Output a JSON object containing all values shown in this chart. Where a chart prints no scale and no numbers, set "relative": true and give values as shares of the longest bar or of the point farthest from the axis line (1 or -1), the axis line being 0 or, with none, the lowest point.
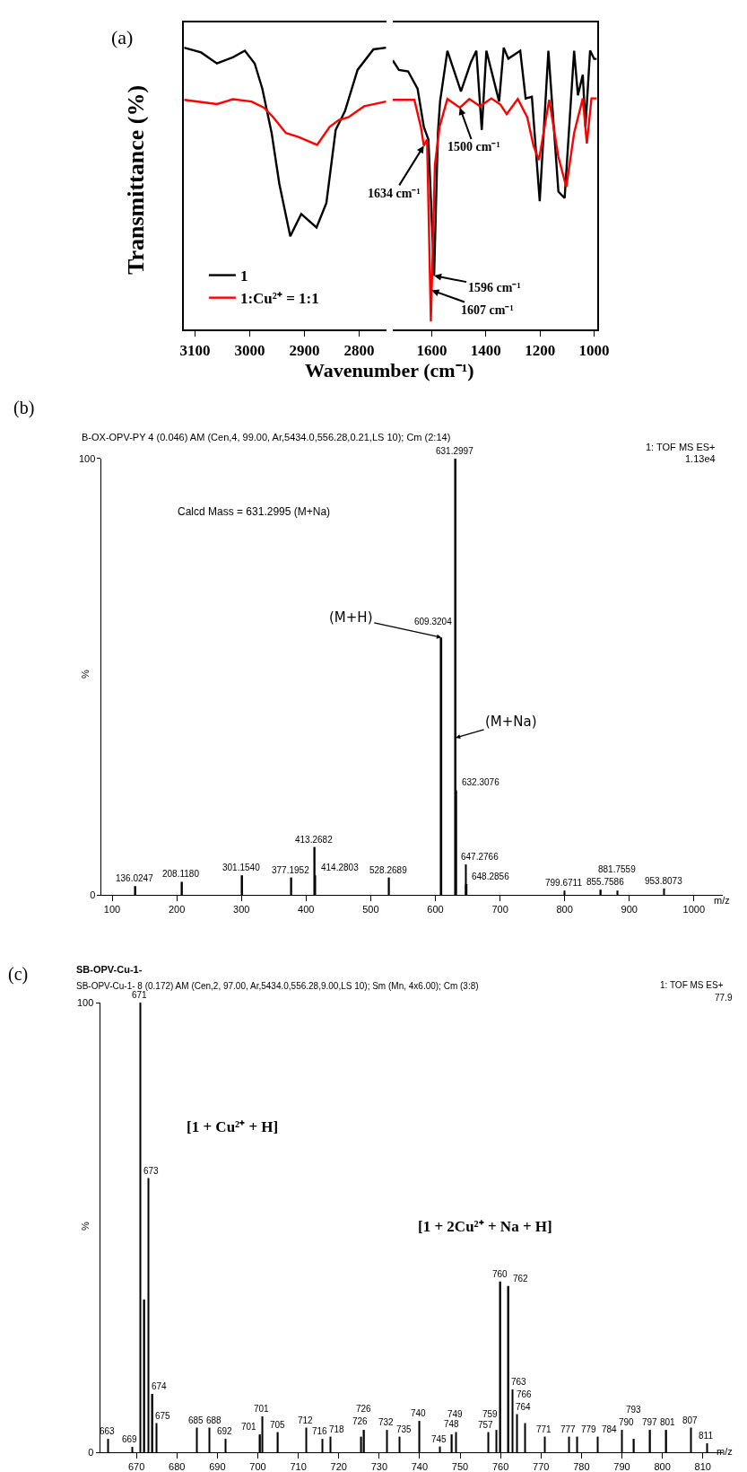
{
  "chart_data": [
    {
      "type": "line",
      "title": "(a)",
      "ylabel": "Transmittance (%)",
      "xlabel": "Wavenumber (cm⁻¹)",
      "relative": true,
      "xlim": [
        3120,
        2750
      ],
      "xticks": [
        3100,
        3000,
        2900,
        2800
      ],
      "legend": "bottom left",
      "series": [
        {
          "name": "1",
          "color": "#000000",
          "x": [
            3120,
            3089,
            3060,
            3031,
            3009,
            2991,
            2977,
            2960,
            2946,
            2926,
            2906,
            2878,
            2860,
            2843,
            2826,
            2803,
            2774,
            2751
          ],
          "values": [
            1.0,
            0.983,
            0.944,
            0.966,
            0.989,
            0.944,
            0.854,
            0.697,
            0.517,
            0.331,
            0.41,
            0.362,
            0.449,
            0.708,
            0.775,
            0.921,
            0.994,
            1.0
          ]
        },
        {
          "name": "1:Cu²⁺ = 1:1",
          "color": "#ff0000",
          "x": [
            3120,
            3060,
            3031,
            2997,
            2974,
            2957,
            2934,
            2911,
            2877,
            2854,
            2837,
            2820,
            2791,
            2751
          ],
          "values": [
            0.815,
            0.8,
            0.817,
            0.809,
            0.787,
            0.753,
            0.697,
            0.683,
            0.655,
            0.719,
            0.744,
            0.753,
            0.792,
            0.809
          ]
        }
      ]
    },
    {
      "type": "line",
      "relative": true,
      "xlim": [
        1744,
        990
      ],
      "xticks": [
        1600,
        1400,
        1200,
        1000
      ],
      "annotations": [
        {
          "text": "1634 cm⁻¹",
          "x": 1629,
          "y": 0.652
        },
        {
          "text": "1500 cm⁻¹",
          "x": 1496,
          "y": 0.787
        },
        {
          "text": "1596 cm⁻¹",
          "x": 1591,
          "y": 0.191
        },
        {
          "text": "1607 cm⁻¹",
          "x": 1600,
          "y": 0.139
        }
      ],
      "series": [
        {
          "color": "#000000",
          "x": [
            1744,
            1721,
            1687,
            1652,
            1629,
            1612,
            1591,
            1577,
            1569,
            1542,
            1492,
            1455,
            1435,
            1415,
            1398,
            1351,
            1334,
            1317,
            1273,
            1253,
            1230,
            1201,
            1169,
            1132,
            1109,
            1074,
            1060,
            1042,
            1032,
            1015,
            1000,
            990
          ],
          "values": [
            0.955,
            0.921,
            0.916,
            0.854,
            0.719,
            0.674,
            0.191,
            0.697,
            0.809,
            0.989,
            0.845,
            0.949,
            0.989,
            0.708,
            0.989,
            0.809,
            1.0,
            0.961,
            0.989,
            0.82,
            0.826,
            0.455,
            0.989,
            0.489,
            0.466,
            0.989,
            0.831,
            0.904,
            0.72,
            0.99,
            0.96,
            0.96
          ]
        },
        {
          "color": "#ff0000",
          "x": [
            1744,
            1664,
            1640,
            1629,
            1617,
            1603,
            1588,
            1571,
            1542,
            1496,
            1461,
            1421,
            1380,
            1346,
            1323,
            1282,
            1247,
            1224,
            1204,
            1166,
            1132,
            1103,
            1074,
            1042,
            1027,
            1010,
            1000,
            990
          ],
          "values": [
            0.815,
            0.815,
            0.719,
            0.652,
            0.674,
            0.028,
            0.584,
            0.719,
            0.818,
            0.787,
            0.818,
            0.792,
            0.82,
            0.798,
            0.764,
            0.818,
            0.753,
            0.652,
            0.601,
            0.815,
            0.612,
            0.506,
            0.697,
            0.82,
            0.66,
            0.82,
            0.82,
            0.82
          ]
        }
      ]
    },
    {
      "type": "bar",
      "title": "(b)",
      "subtitle": "B-OX-OPV-PY 4 (0.046) AM (Cen,4, 99.00, Ar,5434.0,556.28,0.21,LS 10); Cm (2:14)",
      "xlabel": "m/z",
      "ylabel": "%",
      "xlim": [
        84,
        1045
      ],
      "xticks": [
        100,
        200,
        300,
        400,
        500,
        600,
        700,
        800,
        900,
        1000
      ],
      "ylim": [
        0,
        100
      ],
      "yticks": [
        0,
        100
      ],
      "color": "#000000",
      "x": [
        136.0247,
        208.118,
        301.154,
        377.1952,
        413.2682,
        414.2803,
        528.2689,
        609.3204,
        631.2997,
        632.3076,
        647.2766,
        648.2856,
        799.6711,
        855.7586,
        881.7559,
        953.8073
      ],
      "values": [
        2,
        3,
        4.5,
        4,
        11,
        4.5,
        4,
        59,
        100,
        24,
        7,
        2.5,
        1,
        1.2,
        1,
        1.5
      ],
      "annotations": [
        {
          "text": "136.0247",
          "x": 136.0247,
          "y": 2
        },
        {
          "text": "208.1180",
          "x": 208.118,
          "y": 3
        },
        {
          "text": "301.1540",
          "x": 301.154,
          "y": 4.5
        },
        {
          "text": "377.1952",
          "x": 377.1952,
          "y": 4
        },
        {
          "text": "413.2682",
          "x": 413.2682,
          "y": 11
        },
        {
          "text": "414.2803",
          "x": 414.2803,
          "y": 4.5
        },
        {
          "text": "528.2689",
          "x": 528.2689,
          "y": 4
        },
        {
          "text": "609.3204",
          "x": 609.3204,
          "y": 59
        },
        {
          "text": "631.2997",
          "x": 631.2997,
          "y": 100
        },
        {
          "text": "632.3076",
          "x": 632.3076,
          "y": 24
        },
        {
          "text": "647.2766",
          "x": 647.2766,
          "y": 7
        },
        {
          "text": "648.2856",
          "x": 648.2856,
          "y": 2.5
        },
        {
          "text": "799.6711",
          "x": 799.6711,
          "y": 1
        },
        {
          "text": "855.7586",
          "x": 855.7586,
          "y": 1.2
        },
        {
          "text": "881.7559",
          "x": 881.7559,
          "y": 1
        },
        {
          "text": "953.8073",
          "x": 953.8073,
          "y": 1.5
        },
        {
          "text": "(M+H)",
          "x": 609.3204,
          "y": 59
        },
        {
          "text": "(M+Na)",
          "x": 631.2997,
          "y": 36
        },
        "Calcd Mass = 631.2995 (M+Na)",
        "1: TOF MS ES+",
        "1.13e4"
      ]
    },
    {
      "type": "bar",
      "title": "(c)",
      "subtitle": "SB-OPV-Cu-1-",
      "xlabel": "m/z",
      "ylabel": "%",
      "xlim": [
        661,
        815
      ],
      "xticks": [
        670,
        680,
        690,
        700,
        710,
        720,
        730,
        740,
        750,
        760,
        770,
        780,
        790,
        800,
        810
      ],
      "ylim": [
        0,
        100
      ],
      "yticks": [
        0,
        100
      ],
      "color": "#000000",
      "x": [
        663,
        669,
        671,
        672,
        673,
        674,
        675,
        685,
        688,
        692,
        700.6,
        701.2,
        705,
        712,
        716,
        718,
        725.6,
        726.3,
        732,
        735,
        740,
        745,
        748,
        749,
        757,
        759,
        760,
        762,
        763,
        764,
        766,
        771,
        777,
        779,
        784,
        790,
        793,
        797,
        801,
        807,
        811
      ],
      "values": [
        3,
        1.2,
        100,
        34,
        61,
        13,
        6.5,
        5.5,
        5.5,
        3,
        4,
        8,
        4.5,
        5.5,
        3,
        3.5,
        3.5,
        5,
        5,
        3.5,
        7,
        1.3,
        4,
        4.5,
        4.5,
        5,
        38,
        37,
        14,
        8.5,
        6.5,
        3.5,
        3.5,
        3.5,
        3.5,
        5,
        3,
        5,
        5,
        5.5,
        2
      ],
      "annotations": [
        {
          "text": "663",
          "x": 663,
          "y": 3
        },
        {
          "text": "669",
          "x": 669,
          "y": 1.2
        },
        {
          "text": "671",
          "x": 671,
          "y": 100
        },
        {
          "text": "673",
          "x": 673,
          "y": 61
        },
        {
          "text": "674",
          "x": 674,
          "y": 13
        },
        {
          "text": "675",
          "x": 675,
          "y": 6.5
        },
        {
          "text": "685",
          "x": 685,
          "y": 5.5
        },
        {
          "text": "688",
          "x": 688,
          "y": 5.5
        },
        {
          "text": "692",
          "x": 692,
          "y": 3
        },
        {
          "text": "701",
          "x": 700.6,
          "y": 4
        },
        {
          "text": "701",
          "x": 701.2,
          "y": 8
        },
        {
          "text": "705",
          "x": 705,
          "y": 4.5
        },
        {
          "text": "712",
          "x": 712,
          "y": 5.5
        },
        {
          "text": "716",
          "x": 716,
          "y": 3
        },
        {
          "text": "718",
          "x": 718,
          "y": 3.5
        },
        {
          "text": "726",
          "x": 725.6,
          "y": 3.5
        },
        {
          "text": "726",
          "x": 726.3,
          "y": 5
        },
        {
          "text": "732",
          "x": 732,
          "y": 5
        },
        {
          "text": "735",
          "x": 735,
          "y": 3.5
        },
        {
          "text": "740",
          "x": 740,
          "y": 7
        },
        {
          "text": "745",
          "x": 745,
          "y": 1.3
        },
        {
          "text": "748",
          "x": 748,
          "y": 4
        },
        {
          "text": "749",
          "x": 749,
          "y": 4.5
        },
        {
          "text": "757",
          "x": 757,
          "y": 4.5
        },
        {
          "text": "759",
          "x": 759,
          "y": 5
        },
        {
          "text": "760",
          "x": 760,
          "y": 38
        },
        {
          "text": "762",
          "x": 762,
          "y": 37
        },
        {
          "text": "763",
          "x": 763,
          "y": 14
        },
        {
          "text": "764",
          "x": 764,
          "y": 8.5
        },
        {
          "text": "766",
          "x": 766,
          "y": 6.5
        },
        {
          "text": "771",
          "x": 771,
          "y": 3.5
        },
        {
          "text": "777",
          "x": 777,
          "y": 3.5
        },
        {
          "text": "779",
          "x": 779,
          "y": 3.5
        },
        {
          "text": "784",
          "x": 784,
          "y": 3.5
        },
        {
          "text": "790",
          "x": 790,
          "y": 5
        },
        {
          "text": "793",
          "x": 793,
          "y": 3
        },
        {
          "text": "797",
          "x": 797,
          "y": 5
        },
        {
          "text": "801",
          "x": 801,
          "y": 5
        },
        {
          "text": "807",
          "x": 807,
          "y": 5.5
        },
        {
          "text": "811",
          "x": 811,
          "y": 2
        },
        "[1 + Cu²⁺ + H]",
        "[1 + 2Cu²⁺ + Na + H]",
        "SB-OPV-Cu-1- 8 (0.172) AM (Cen,2, 97.00, Ar,5434.0,556.28,9.00,LS 10); Sm (Mn, 4x6.00); Cm (3:8)",
        "1: TOF MS ES+",
        "77.9"
      ]
    }
  ]
}
